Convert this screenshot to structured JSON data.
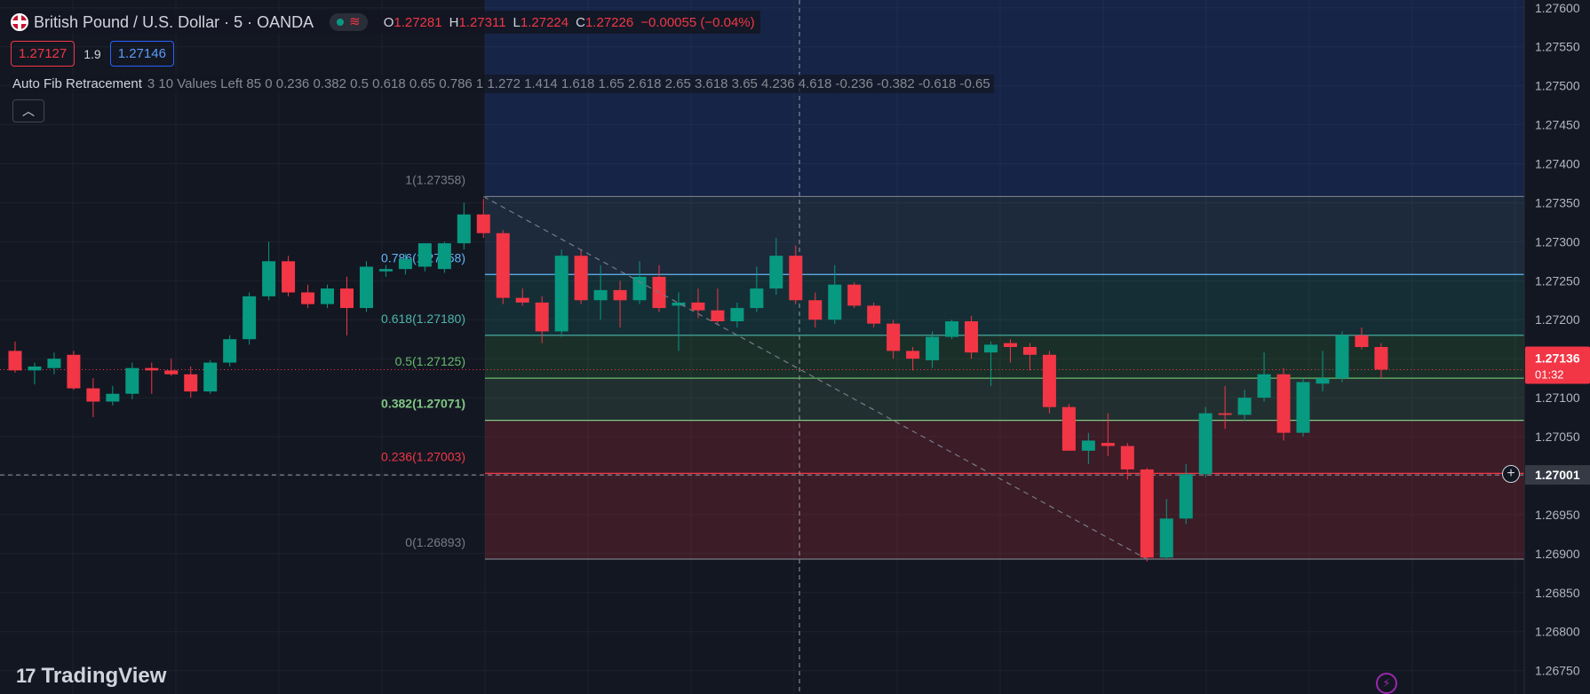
{
  "header": {
    "symbol": "British Pound / U.S. Dollar · 5 · OANDA",
    "ohlc": [
      {
        "k": "O",
        "v": "1.27281"
      },
      {
        "k": "H",
        "v": "1.27311"
      },
      {
        "k": "L",
        "v": "1.27224"
      },
      {
        "k": "C",
        "v": "1.27226"
      }
    ],
    "change": "−0.00055 (−0.04%)"
  },
  "quote": {
    "bid": "1.27127",
    "spread": "1.9",
    "ask": "1.27146"
  },
  "indicator": {
    "name": "Auto Fib Retracement",
    "params": "3 10 Values Left 85 0 0.236 0.382 0.5 0.618 0.65 0.786 1 1.272 1.414 1.618 1.65 2.618 2.65 3.618 3.65 4.236 4.618 -0.236 -0.382 -0.618 -0.65"
  },
  "collapse_icon": "chevron-up-icon",
  "branding": {
    "text": "TradingView"
  },
  "colors": {
    "up": "#089981",
    "down": "#f23645",
    "background": "#131722"
  },
  "chart_data": {
    "type": "candlestick",
    "ylim": [
      1.2672,
      1.2761
    ],
    "y_ticks": [
      "1.27600",
      "1.27550",
      "1.27500",
      "1.27450",
      "1.27400",
      "1.27350",
      "1.27300",
      "1.27250",
      "1.27200",
      "1.27150",
      "1.27100",
      "1.27050",
      "1.27000",
      "1.26950",
      "1.26900",
      "1.26850",
      "1.26800",
      "1.26750"
    ],
    "last_price": {
      "label": "1.27136",
      "value": 1.27136,
      "countdown": "01:32"
    },
    "crosshair": {
      "label": "1.27001",
      "value": 1.27001
    },
    "fib_levels": [
      {
        "ratio": "1",
        "label": "1(1.27358)",
        "value": 1.27358,
        "color": "#787b86",
        "fill": "rgba(120,123,134,0.16)",
        "bold": false
      },
      {
        "ratio": "0.786",
        "label": "0.786(1.27258)",
        "value": 1.27258,
        "color": "#64b5f6",
        "fill": "rgba(100,181,246,0.12)",
        "bold": false
      },
      {
        "ratio": "0.618",
        "label": "0.618(1.27180)",
        "value": 1.2718,
        "color": "#4db6ac",
        "fill": "rgba(38,166,154,0.16)",
        "bold": false
      },
      {
        "ratio": "0.5",
        "label": "0.5(1.27125)",
        "value": 1.27125,
        "color": "#66bb6a",
        "fill": "rgba(76,175,80,0.16)",
        "bold": false
      },
      {
        "ratio": "0.382",
        "label": "0.382(1.27071)",
        "value": 1.27071,
        "color": "#81c784",
        "fill": "rgba(129,199,132,0.14)",
        "bold": true
      },
      {
        "ratio": "0.236",
        "label": "0.236(1.27003)",
        "value": 1.27003,
        "color": "#f23645",
        "fill": "rgba(242,54,69,0.18)",
        "bold": false
      },
      {
        "ratio": "0",
        "label": "0(1.26893)",
        "value": 1.26893,
        "color": "#787b86",
        "fill": null,
        "bold": false
      }
    ],
    "fib_top_fill": "rgba(41,98,255,0.17)",
    "candles": [
      [
        1.2716,
        1.27172,
        1.27132,
        1.27135
      ],
      [
        1.27135,
        1.27145,
        1.27117,
        1.2714
      ],
      [
        1.27138,
        1.27158,
        1.2713,
        1.2715
      ],
      [
        1.27155,
        1.2716,
        1.2711,
        1.27112
      ],
      [
        1.27112,
        1.27125,
        1.27075,
        1.27095
      ],
      [
        1.27095,
        1.27115,
        1.2709,
        1.27105
      ],
      [
        1.27105,
        1.27145,
        1.27098,
        1.27138
      ],
      [
        1.27138,
        1.27145,
        1.27105,
        1.27135
      ],
      [
        1.27135,
        1.2715,
        1.27128,
        1.2713
      ],
      [
        1.2713,
        1.2714,
        1.271,
        1.27108
      ],
      [
        1.27108,
        1.27148,
        1.27105,
        1.27145
      ],
      [
        1.27145,
        1.2718,
        1.2714,
        1.27175
      ],
      [
        1.27175,
        1.27235,
        1.27168,
        1.2723
      ],
      [
        1.2723,
        1.273,
        1.27225,
        1.27275
      ],
      [
        1.27275,
        1.27282,
        1.2723,
        1.27235
      ],
      [
        1.27235,
        1.27245,
        1.27215,
        1.2722
      ],
      [
        1.2722,
        1.27245,
        1.27215,
        1.2724
      ],
      [
        1.2724,
        1.27255,
        1.2718,
        1.27215
      ],
      [
        1.27215,
        1.27275,
        1.2721,
        1.27268
      ],
      [
        1.27262,
        1.2727,
        1.27255,
        1.27265
      ],
      [
        1.27265,
        1.27285,
        1.27258,
        1.27278
      ],
      [
        1.27268,
        1.27298,
        1.27262,
        1.27298
      ],
      [
        1.27265,
        1.273,
        1.2726,
        1.27298
      ],
      [
        1.27298,
        1.2735,
        1.2729,
        1.27335
      ],
      [
        1.27335,
        1.27355,
        1.27305,
        1.27311
      ],
      [
        1.27311,
        1.27315,
        1.2722,
        1.27228
      ],
      [
        1.27228,
        1.2724,
        1.27218,
        1.27222
      ],
      [
        1.27222,
        1.2723,
        1.2717,
        1.27185
      ],
      [
        1.27185,
        1.2729,
        1.27178,
        1.27282
      ],
      [
        1.27282,
        1.2729,
        1.2722,
        1.27225
      ],
      [
        1.27225,
        1.2727,
        1.272,
        1.27238
      ],
      [
        1.27238,
        1.2725,
        1.2719,
        1.27225
      ],
      [
        1.27225,
        1.27275,
        1.2722,
        1.27255
      ],
      [
        1.27255,
        1.2727,
        1.2721,
        1.27215
      ],
      [
        1.27218,
        1.27235,
        1.2716,
        1.27222
      ],
      [
        1.27222,
        1.2724,
        1.27202,
        1.27212
      ],
      [
        1.27212,
        1.2724,
        1.27195,
        1.27198
      ],
      [
        1.27198,
        1.27222,
        1.2719,
        1.27215
      ],
      [
        1.27215,
        1.27268,
        1.2721,
        1.2724
      ],
      [
        1.2724,
        1.27305,
        1.27232,
        1.27282
      ],
      [
        1.27282,
        1.27295,
        1.2722,
        1.27225
      ],
      [
        1.27225,
        1.27235,
        1.2719,
        1.272
      ],
      [
        1.272,
        1.2727,
        1.27195,
        1.27245
      ],
      [
        1.27245,
        1.27248,
        1.27215,
        1.27218
      ],
      [
        1.27218,
        1.27222,
        1.2719,
        1.27195
      ],
      [
        1.27195,
        1.272,
        1.2715,
        1.2716
      ],
      [
        1.2716,
        1.27165,
        1.27135,
        1.2715
      ],
      [
        1.27148,
        1.27185,
        1.27138,
        1.27178
      ],
      [
        1.27178,
        1.272,
        1.27175,
        1.27198
      ],
      [
        1.27198,
        1.27205,
        1.2715,
        1.27158
      ],
      [
        1.27158,
        1.27172,
        1.27115,
        1.27168
      ],
      [
        1.2717,
        1.27175,
        1.27145,
        1.27165
      ],
      [
        1.27165,
        1.2717,
        1.27135,
        1.27155
      ],
      [
        1.27155,
        1.2716,
        1.2708,
        1.27088
      ],
      [
        1.27088,
        1.27092,
        1.27032,
        1.27032
      ],
      [
        1.27032,
        1.27055,
        1.27015,
        1.27045
      ],
      [
        1.27042,
        1.2708,
        1.27025,
        1.27038
      ],
      [
        1.27038,
        1.27042,
        1.26995,
        1.27008
      ],
      [
        1.27008,
        1.2701,
        1.2689,
        1.26895
      ],
      [
        1.26895,
        1.2697,
        1.26893,
        1.26945
      ],
      [
        1.26945,
        1.27015,
        1.26938,
        1.27002
      ],
      [
        1.27002,
        1.27088,
        1.26998,
        1.2708
      ],
      [
        1.2708,
        1.27115,
        1.2706,
        1.27078
      ],
      [
        1.27078,
        1.2711,
        1.2707,
        1.271
      ],
      [
        1.271,
        1.27158,
        1.27095,
        1.2713
      ],
      [
        1.2713,
        1.27138,
        1.27045,
        1.27055
      ],
      [
        1.27055,
        1.27125,
        1.2705,
        1.2712
      ],
      [
        1.27118,
        1.2716,
        1.27108,
        1.27125
      ],
      [
        1.27125,
        1.27185,
        1.2712,
        1.2718
      ],
      [
        1.2718,
        1.2719,
        1.27162,
        1.27165
      ],
      [
        1.27165,
        1.2717,
        1.27125,
        1.27136
      ]
    ]
  }
}
